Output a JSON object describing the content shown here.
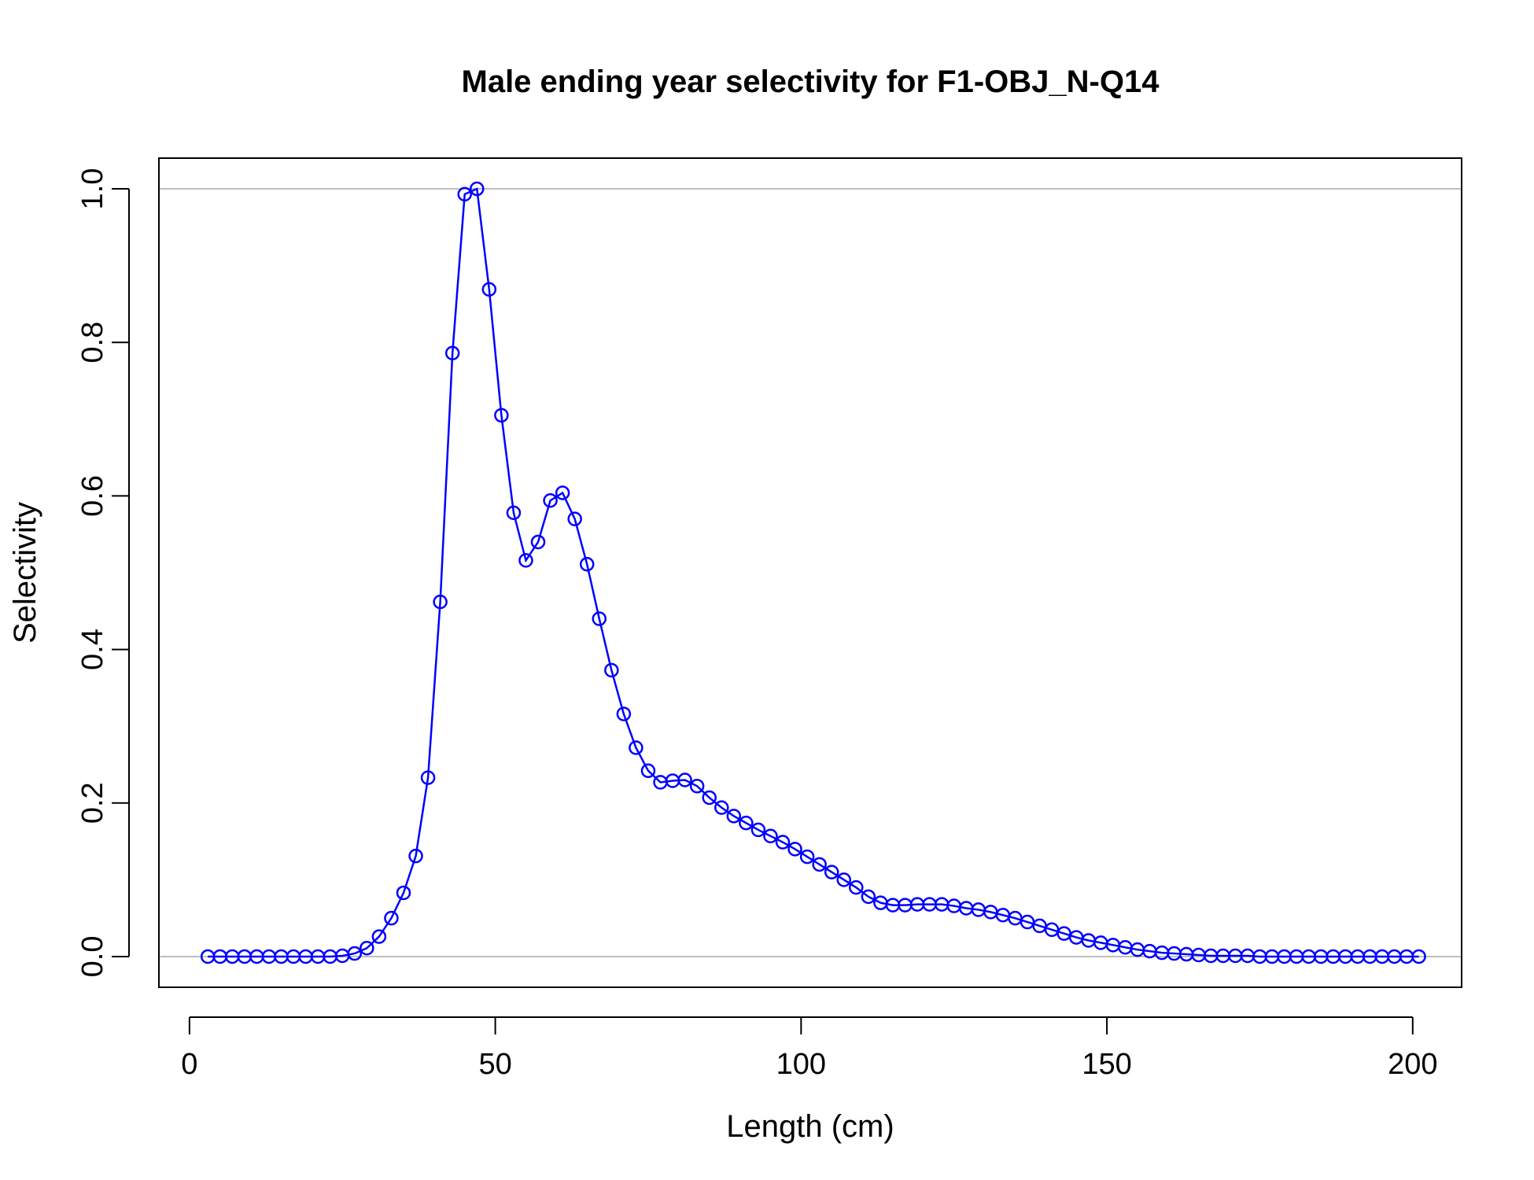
{
  "chart_data": {
    "type": "line",
    "title": "Male ending year selectivity for F1-OBJ_N-Q14",
    "xlabel": "Length (cm)",
    "ylabel": "Selectivity",
    "xlim": [
      -5,
      208
    ],
    "ylim": [
      -0.04,
      1.04
    ],
    "x_ticks": [
      0,
      50,
      100,
      150,
      200
    ],
    "x_tick_labels": [
      "0",
      "50",
      "100",
      "150",
      "200"
    ],
    "y_ticks": [
      0,
      0.2,
      0.4,
      0.6,
      0.8,
      1.0
    ],
    "y_tick_labels": [
      "0.0",
      "0.2",
      "0.4",
      "0.6",
      "0.8",
      "1.0"
    ],
    "reference_lines": [
      0,
      1
    ],
    "grid": false,
    "colors": {
      "series": "#0000ff",
      "reference": "#bebebe",
      "frame": "#000000"
    },
    "marker": "open-circle",
    "series": [
      {
        "x": [
          3,
          5,
          7,
          9,
          11,
          13,
          15,
          17,
          19,
          21,
          23,
          25,
          27,
          29,
          31,
          33,
          35,
          37,
          39,
          41,
          43,
          45,
          47,
          49,
          51,
          53,
          55,
          57,
          59,
          61,
          63,
          65,
          67,
          69,
          71,
          73,
          75,
          77,
          79,
          81,
          83,
          85,
          87,
          89,
          91,
          93,
          95,
          97,
          99,
          101,
          103,
          105,
          107,
          109,
          111,
          113,
          115,
          117,
          119,
          121,
          123,
          125,
          127,
          129,
          131,
          133,
          135,
          137,
          139,
          141,
          143,
          145,
          147,
          149,
          151,
          153,
          155,
          157,
          159,
          161,
          163,
          165,
          167,
          169,
          171,
          173,
          175,
          177,
          179,
          181,
          183,
          185,
          187,
          189,
          191,
          193,
          195,
          197,
          199,
          201
        ],
        "values": [
          0,
          0,
          0,
          0,
          0,
          0,
          0,
          0,
          0,
          0,
          0,
          0.001,
          0.004,
          0.011,
          0.026,
          0.05,
          0.083,
          0.131,
          0.233,
          0.462,
          0.786,
          0.993,
          1.0,
          0.869,
          0.705,
          0.578,
          0.516,
          0.54,
          0.594,
          0.604,
          0.57,
          0.511,
          0.44,
          0.373,
          0.316,
          0.272,
          0.242,
          0.227,
          0.229,
          0.23,
          0.222,
          0.207,
          0.194,
          0.183,
          0.174,
          0.165,
          0.157,
          0.149,
          0.14,
          0.13,
          0.12,
          0.11,
          0.1,
          0.09,
          0.078,
          0.07,
          0.067,
          0.067,
          0.068,
          0.068,
          0.068,
          0.066,
          0.063,
          0.061,
          0.058,
          0.054,
          0.05,
          0.045,
          0.04,
          0.035,
          0.03,
          0.025,
          0.021,
          0.018,
          0.015,
          0.012,
          0.009,
          0.007,
          0.005,
          0.004,
          0.003,
          0.002,
          0.001,
          0.001,
          0.001,
          0.001,
          0,
          0,
          0,
          0,
          0,
          0,
          0,
          0,
          0,
          0,
          0,
          0,
          0,
          0
        ]
      }
    ]
  }
}
